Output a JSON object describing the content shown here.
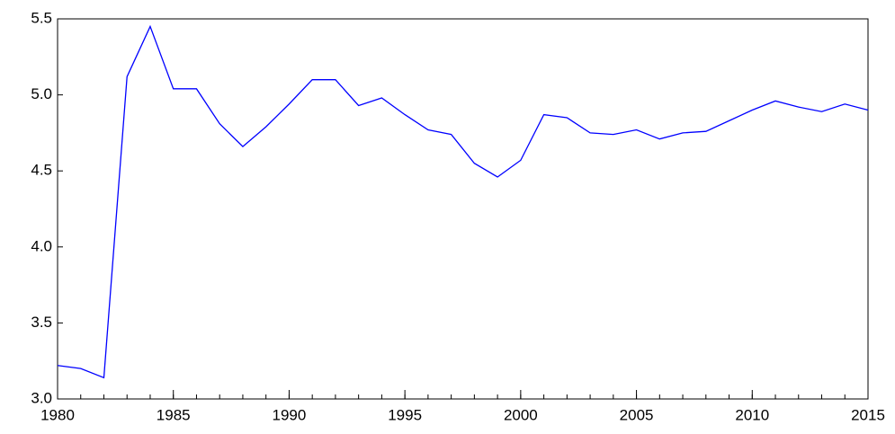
{
  "chart_data": {
    "type": "line",
    "x": [
      1980,
      1981,
      1982,
      1983,
      1984,
      1985,
      1986,
      1987,
      1988,
      1989,
      1990,
      1991,
      1992,
      1993,
      1994,
      1995,
      1996,
      1997,
      1998,
      1999,
      2000,
      2001,
      2002,
      2003,
      2004,
      2005,
      2006,
      2007,
      2008,
      2009,
      2010,
      2011,
      2012,
      2013,
      2014,
      2015
    ],
    "series": [
      {
        "color": "#0000ff",
        "values": [
          3.22,
          3.2,
          3.14,
          5.12,
          5.45,
          5.04,
          5.04,
          4.81,
          4.66,
          4.79,
          4.94,
          5.1,
          5.1,
          4.93,
          4.98,
          4.87,
          4.77,
          4.74,
          4.55,
          4.46,
          4.57,
          4.87,
          4.85,
          4.75,
          4.74,
          4.77,
          4.71,
          4.75,
          4.76,
          4.83,
          4.9,
          4.96,
          4.92,
          4.89,
          4.94,
          4.9
        ]
      }
    ],
    "xlim": [
      1980,
      2015
    ],
    "xticks": [
      1980,
      1985,
      1990,
      1995,
      2000,
      2005,
      2010,
      2015
    ],
    "ylim": [
      3.0,
      5.5
    ],
    "yticks": [
      {
        "value": 3,
        "label": "3.0"
      },
      3.5,
      {
        "value": 4,
        "label": "4.0"
      },
      4.5,
      {
        "value": 5,
        "label": "5.0"
      },
      5.5
    ],
    "grid": false
  }
}
